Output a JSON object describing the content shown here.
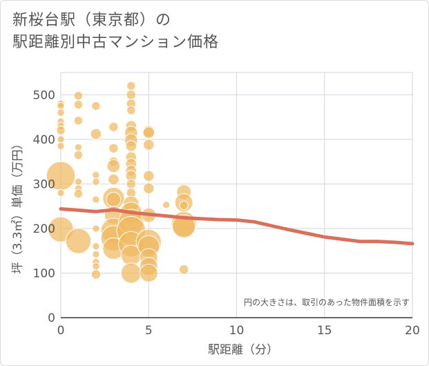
{
  "title_line1": "新桜台駅（東京都）の",
  "title_line2": "駅距離別中古マンション価格",
  "chart_data": {
    "type": "scatter",
    "title": "新桜台駅（東京都）の 駅距離別中古マンション価格",
    "xlabel": "駅距離（分）",
    "ylabel": "坪（3.3㎡）単価（万円）",
    "xlim": [
      0,
      20
    ],
    "ylim": [
      0,
      550
    ],
    "x_ticks": [
      "0",
      "5",
      "10",
      "15",
      "20"
    ],
    "y_ticks": [
      "0",
      "100",
      "200",
      "300",
      "400",
      "500"
    ],
    "note": "円の大きさは、取引のあった物件面積を示す",
    "bubble_color": "#f0b860",
    "line_color": "#d9705a",
    "points": [
      {
        "x": 0,
        "y": 480,
        "s": 1
      },
      {
        "x": 0,
        "y": 475,
        "s": 1
      },
      {
        "x": 0,
        "y": 460,
        "s": 1
      },
      {
        "x": 0,
        "y": 440,
        "s": 1
      },
      {
        "x": 0,
        "y": 430,
        "s": 1
      },
      {
        "x": 0,
        "y": 420,
        "s": 1.2
      },
      {
        "x": 0,
        "y": 400,
        "s": 1
      },
      {
        "x": 0,
        "y": 385,
        "s": 1
      },
      {
        "x": 0,
        "y": 318,
        "s": 4
      },
      {
        "x": 0,
        "y": 280,
        "s": 1
      },
      {
        "x": 0,
        "y": 198,
        "s": 3.5
      },
      {
        "x": 1,
        "y": 498,
        "s": 1.2
      },
      {
        "x": 1,
        "y": 478,
        "s": 1.2
      },
      {
        "x": 1,
        "y": 442,
        "s": 1.2
      },
      {
        "x": 1,
        "y": 382,
        "s": 1
      },
      {
        "x": 1,
        "y": 365,
        "s": 1.2
      },
      {
        "x": 1,
        "y": 305,
        "s": 1
      },
      {
        "x": 1,
        "y": 290,
        "s": 1
      },
      {
        "x": 1,
        "y": 278,
        "s": 1.2
      },
      {
        "x": 1,
        "y": 172,
        "s": 3.5
      },
      {
        "x": 2,
        "y": 475,
        "s": 1.2
      },
      {
        "x": 2,
        "y": 412,
        "s": 1.5
      },
      {
        "x": 2,
        "y": 320,
        "s": 1
      },
      {
        "x": 2,
        "y": 305,
        "s": 1
      },
      {
        "x": 2,
        "y": 265,
        "s": 1
      },
      {
        "x": 2,
        "y": 200,
        "s": 1
      },
      {
        "x": 2,
        "y": 160,
        "s": 1
      },
      {
        "x": 2,
        "y": 142,
        "s": 1
      },
      {
        "x": 2,
        "y": 125,
        "s": 1
      },
      {
        "x": 2,
        "y": 115,
        "s": 1
      },
      {
        "x": 2,
        "y": 97,
        "s": 1.3
      },
      {
        "x": 3,
        "y": 428,
        "s": 1.3
      },
      {
        "x": 3,
        "y": 380,
        "s": 1.3
      },
      {
        "x": 3,
        "y": 350,
        "s": 1.3
      },
      {
        "x": 3,
        "y": 340,
        "s": 1.8
      },
      {
        "x": 3,
        "y": 310,
        "s": 1.5
      },
      {
        "x": 3,
        "y": 268,
        "s": 3
      },
      {
        "x": 3,
        "y": 265,
        "s": 2
      },
      {
        "x": 3,
        "y": 230,
        "s": 2.5
      },
      {
        "x": 3,
        "y": 195,
        "s": 3.5
      },
      {
        "x": 3,
        "y": 178,
        "s": 3.5
      },
      {
        "x": 3,
        "y": 155,
        "s": 3
      },
      {
        "x": 4,
        "y": 520,
        "s": 1.2
      },
      {
        "x": 4,
        "y": 500,
        "s": 1.3
      },
      {
        "x": 4,
        "y": 480,
        "s": 1.3
      },
      {
        "x": 4,
        "y": 465,
        "s": 1.2
      },
      {
        "x": 4,
        "y": 430,
        "s": 1.5
      },
      {
        "x": 4,
        "y": 415,
        "s": 1.8
      },
      {
        "x": 4,
        "y": 398,
        "s": 1.8
      },
      {
        "x": 4,
        "y": 385,
        "s": 1.5
      },
      {
        "x": 4,
        "y": 360,
        "s": 1.5
      },
      {
        "x": 4,
        "y": 345,
        "s": 1.5
      },
      {
        "x": 4,
        "y": 330,
        "s": 1.5
      },
      {
        "x": 4,
        "y": 318,
        "s": 1.5
      },
      {
        "x": 4,
        "y": 300,
        "s": 1.3
      },
      {
        "x": 4,
        "y": 280,
        "s": 1.3
      },
      {
        "x": 4,
        "y": 255,
        "s": 2.2
      },
      {
        "x": 4,
        "y": 235,
        "s": 3
      },
      {
        "x": 4,
        "y": 215,
        "s": 3.5
      },
      {
        "x": 4,
        "y": 195,
        "s": 4
      },
      {
        "x": 4,
        "y": 165,
        "s": 3.5
      },
      {
        "x": 4,
        "y": 140,
        "s": 2.8
      },
      {
        "x": 4,
        "y": 100,
        "s": 2.8
      },
      {
        "x": 5,
        "y": 418,
        "s": 1.6
      },
      {
        "x": 5,
        "y": 415,
        "s": 1.6
      },
      {
        "x": 5,
        "y": 388,
        "s": 1.5
      },
      {
        "x": 5,
        "y": 318,
        "s": 1.5
      },
      {
        "x": 5,
        "y": 290,
        "s": 1.5
      },
      {
        "x": 5,
        "y": 230,
        "s": 2
      },
      {
        "x": 5,
        "y": 170,
        "s": 3.5
      },
      {
        "x": 5,
        "y": 160,
        "s": 3
      },
      {
        "x": 5,
        "y": 135,
        "s": 2.5
      },
      {
        "x": 5,
        "y": 115,
        "s": 2.5
      },
      {
        "x": 5,
        "y": 100,
        "s": 2.5
      },
      {
        "x": 6,
        "y": 253,
        "s": 1
      },
      {
        "x": 7,
        "y": 282,
        "s": 2
      },
      {
        "x": 7,
        "y": 258,
        "s": 2.5
      },
      {
        "x": 7,
        "y": 252,
        "s": 1.2
      },
      {
        "x": 7,
        "y": 210,
        "s": 3.5
      },
      {
        "x": 7,
        "y": 205,
        "s": 3.2
      },
      {
        "x": 7,
        "y": 108,
        "s": 1.3
      }
    ],
    "trend": {
      "x": [
        0,
        1,
        2,
        3,
        4,
        5,
        6,
        7,
        8,
        9,
        10,
        11,
        12,
        13,
        14,
        15,
        16,
        17,
        18,
        19,
        20
      ],
      "y": [
        244,
        241,
        238,
        242,
        236,
        232,
        228,
        224,
        222,
        220,
        219,
        215,
        206,
        197,
        189,
        181,
        176,
        171,
        171,
        169,
        166
      ]
    }
  }
}
